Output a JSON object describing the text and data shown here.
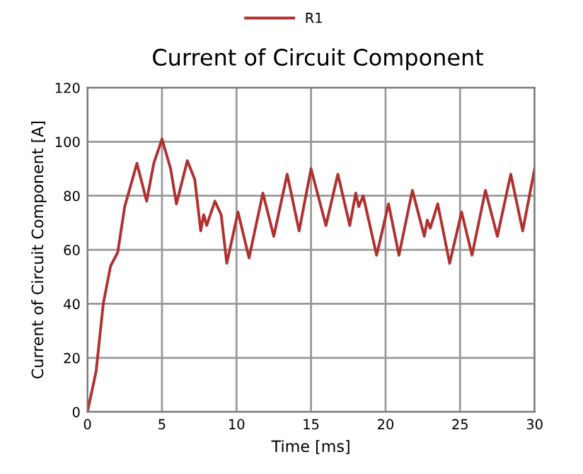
{
  "chart_data": {
    "type": "line",
    "title": "Current of Circuit Component",
    "xlabel": "Time [ms]",
    "ylabel": "Current of Circuit Component [A]",
    "xlim": [
      0,
      30
    ],
    "ylim": [
      0,
      120
    ],
    "xticks": [
      0,
      5,
      10,
      15,
      20,
      25,
      30
    ],
    "yticks": [
      0,
      20,
      40,
      60,
      80,
      100,
      120
    ],
    "grid": true,
    "legend": "top left",
    "marker": "none",
    "line_style": "solid",
    "series": [
      {
        "name": "R1",
        "color": "#b03030",
        "x": [
          0,
          0.58,
          1.06,
          1.55,
          2.03,
          2.5,
          3.32,
          3.97,
          4.45,
          5,
          5.58,
          5.97,
          6.7,
          7.2,
          7.6,
          7.8,
          8.0,
          8.55,
          8.97,
          9.35,
          10.1,
          10.84,
          11.77,
          12.5,
          13.4,
          14.2,
          15.0,
          16.0,
          16.8,
          17.6,
          18.0,
          18.2,
          18.5,
          19.4,
          20.2,
          20.9,
          21.8,
          22.6,
          22.8,
          23.0,
          23.5,
          24.3,
          25.1,
          25.8,
          26.7,
          27.5,
          28.4,
          29.2,
          30.0
        ],
        "values": [
          0,
          15,
          40,
          54,
          59,
          76,
          92,
          78,
          92,
          101,
          90,
          77,
          93,
          86,
          67,
          73,
          69,
          78,
          73,
          55,
          74,
          57,
          81,
          65,
          88,
          67,
          90,
          69,
          88,
          69,
          81,
          76,
          80,
          58,
          77,
          58,
          82,
          65,
          71,
          68,
          77,
          55,
          74,
          58,
          82,
          65,
          88,
          67,
          90
        ]
      }
    ]
  }
}
